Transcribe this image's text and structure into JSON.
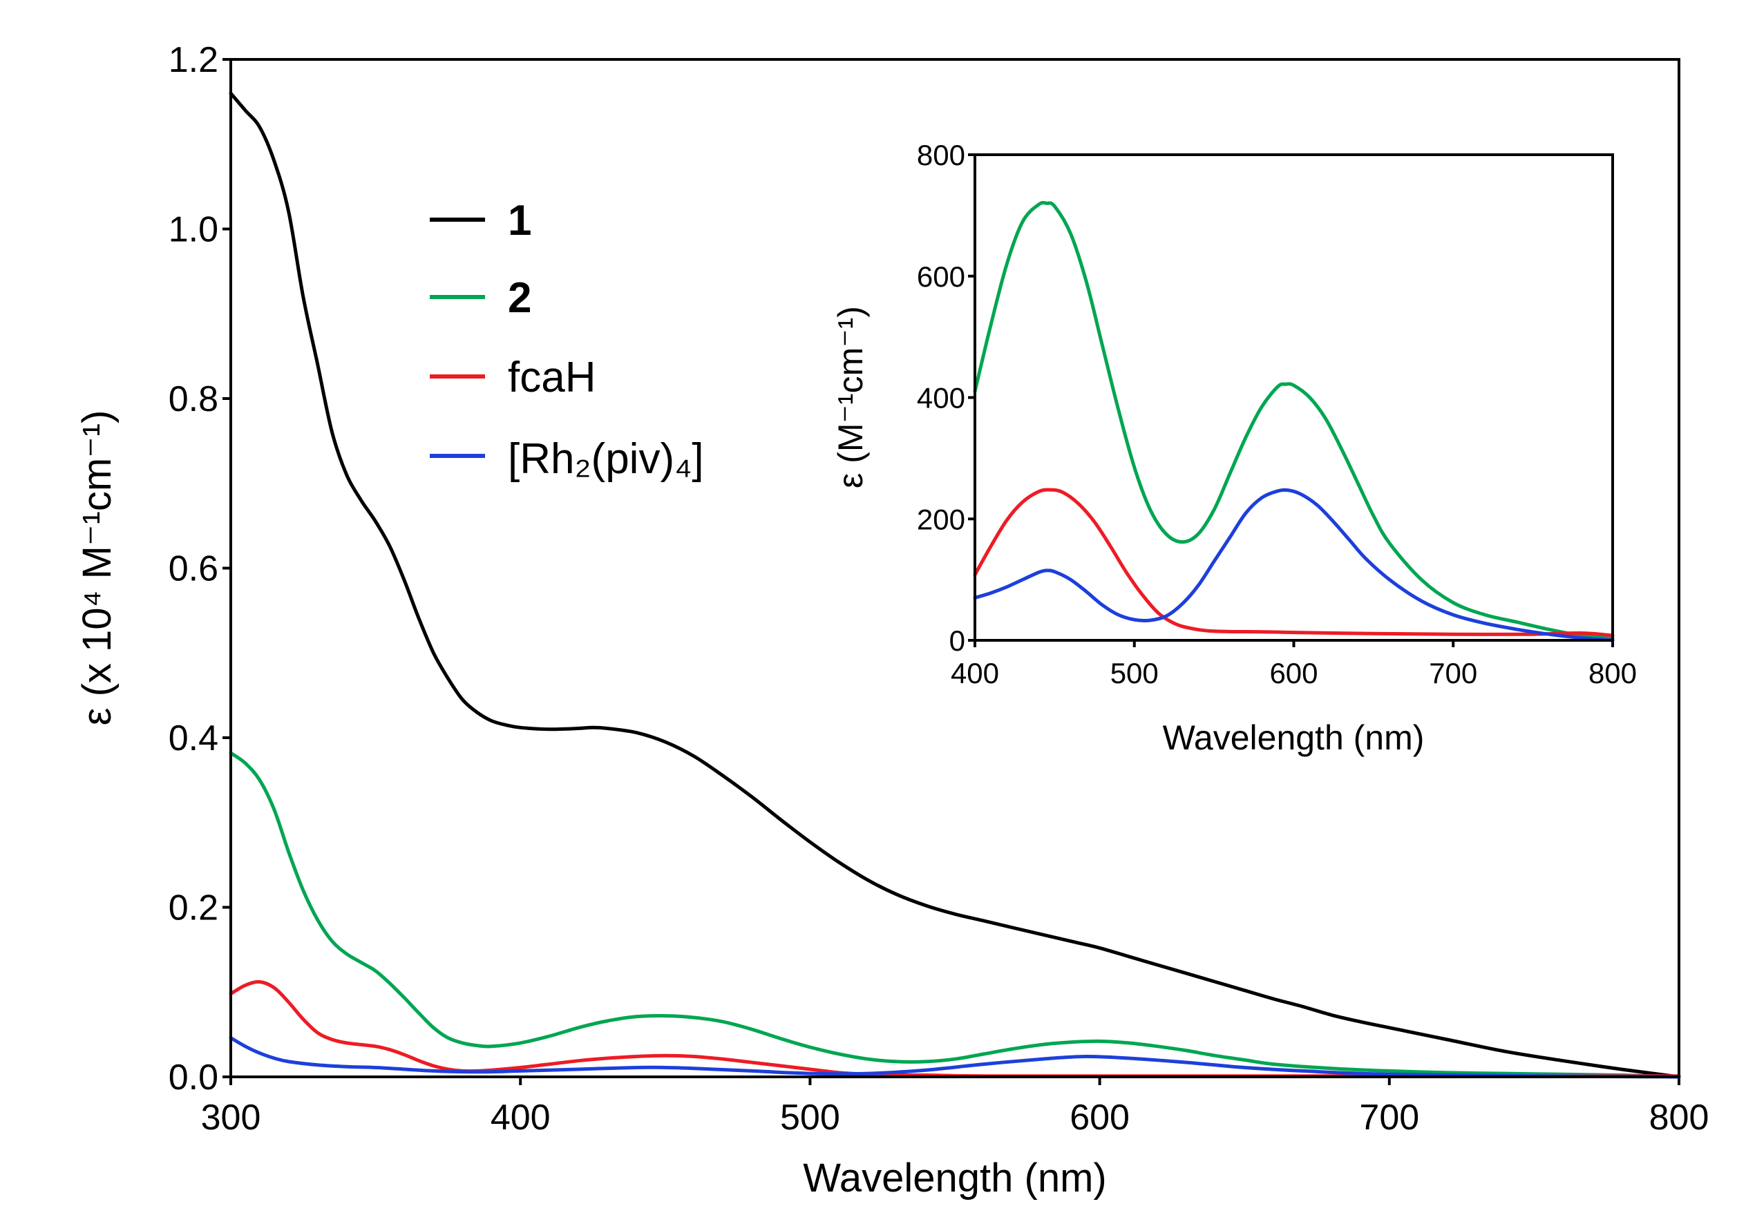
{
  "chart_data": [
    {
      "type": "line",
      "xlabel": "Wavelength (nm)",
      "ylabel": "ε (x 10⁴ M⁻¹cm⁻¹)",
      "xlim": [
        300,
        800
      ],
      "ylim": [
        0,
        1.2
      ],
      "xticks": [
        "300",
        "400",
        "500",
        "600",
        "700",
        "800"
      ],
      "yticks": [
        "0.0",
        "0.2",
        "0.4",
        "0.6",
        "0.8",
        "1.0",
        "1.2"
      ],
      "legend_position": "upper-left",
      "series": [
        {
          "name": "1",
          "color": "#000000",
          "x": [
            300,
            305,
            310,
            315,
            320,
            325,
            330,
            335,
            340,
            345,
            350,
            355,
            360,
            365,
            370,
            375,
            380,
            385,
            390,
            395,
            400,
            410,
            420,
            425,
            430,
            440,
            450,
            460,
            470,
            480,
            490,
            500,
            510,
            520,
            530,
            540,
            550,
            560,
            570,
            580,
            590,
            600,
            610,
            620,
            630,
            640,
            650,
            660,
            670,
            680,
            690,
            700,
            720,
            740,
            760,
            780,
            800
          ],
          "y": [
            1.16,
            1.14,
            1.12,
            1.08,
            1.02,
            0.92,
            0.84,
            0.76,
            0.71,
            0.68,
            0.655,
            0.625,
            0.585,
            0.54,
            0.5,
            0.47,
            0.445,
            0.43,
            0.42,
            0.415,
            0.412,
            0.41,
            0.411,
            0.412,
            0.411,
            0.406,
            0.395,
            0.378,
            0.355,
            0.33,
            0.303,
            0.277,
            0.253,
            0.232,
            0.215,
            0.202,
            0.192,
            0.184,
            0.176,
            0.168,
            0.16,
            0.152,
            0.142,
            0.132,
            0.122,
            0.112,
            0.102,
            0.092,
            0.083,
            0.073,
            0.065,
            0.058,
            0.044,
            0.03,
            0.019,
            0.009,
            0.0
          ]
        },
        {
          "name": "2",
          "color": "#00a651",
          "x": [
            300,
            305,
            310,
            315,
            320,
            325,
            330,
            335,
            340,
            345,
            350,
            355,
            360,
            365,
            370,
            375,
            380,
            385,
            390,
            400,
            410,
            420,
            430,
            440,
            450,
            460,
            470,
            480,
            490,
            500,
            510,
            520,
            530,
            540,
            550,
            560,
            570,
            580,
            590,
            600,
            610,
            620,
            630,
            640,
            650,
            660,
            680,
            700,
            720,
            740,
            760,
            780,
            800
          ],
          "y": [
            0.382,
            0.37,
            0.35,
            0.315,
            0.265,
            0.22,
            0.185,
            0.16,
            0.145,
            0.135,
            0.125,
            0.11,
            0.093,
            0.075,
            0.058,
            0.046,
            0.04,
            0.037,
            0.036,
            0.04,
            0.048,
            0.058,
            0.066,
            0.071,
            0.072,
            0.07,
            0.065,
            0.056,
            0.045,
            0.035,
            0.027,
            0.021,
            0.018,
            0.018,
            0.021,
            0.027,
            0.033,
            0.038,
            0.041,
            0.042,
            0.04,
            0.036,
            0.031,
            0.025,
            0.02,
            0.015,
            0.01,
            0.007,
            0.005,
            0.004,
            0.003,
            0.002,
            0.0
          ]
        },
        {
          "name": "fcaH",
          "color": "#ed1c24",
          "x": [
            300,
            305,
            310,
            315,
            320,
            325,
            330,
            335,
            340,
            345,
            350,
            355,
            360,
            365,
            370,
            375,
            380,
            385,
            390,
            400,
            410,
            420,
            430,
            440,
            450,
            460,
            470,
            480,
            490,
            500,
            510,
            520,
            530,
            540,
            560,
            600,
            650,
            700,
            750,
            800
          ],
          "y": [
            0.098,
            0.108,
            0.112,
            0.105,
            0.088,
            0.068,
            0.052,
            0.044,
            0.04,
            0.038,
            0.036,
            0.032,
            0.026,
            0.019,
            0.013,
            0.009,
            0.007,
            0.007,
            0.008,
            0.011,
            0.015,
            0.019,
            0.022,
            0.024,
            0.025,
            0.024,
            0.021,
            0.017,
            0.013,
            0.009,
            0.005,
            0.003,
            0.002,
            0.002,
            0.001,
            0.001,
            0.001,
            0.001,
            0.001,
            0.001
          ]
        },
        {
          "name": "[Rh₂(piv)₄]",
          "color": "#1d3fdb",
          "x": [
            300,
            305,
            310,
            315,
            320,
            330,
            340,
            350,
            360,
            370,
            380,
            390,
            400,
            420,
            440,
            450,
            460,
            480,
            500,
            520,
            540,
            560,
            580,
            595,
            610,
            630,
            650,
            670,
            700,
            750,
            800
          ],
          "y": [
            0.046,
            0.036,
            0.028,
            0.022,
            0.018,
            0.014,
            0.012,
            0.011,
            0.009,
            0.007,
            0.006,
            0.006,
            0.007,
            0.009,
            0.011,
            0.011,
            0.01,
            0.007,
            0.004,
            0.004,
            0.008,
            0.015,
            0.021,
            0.024,
            0.022,
            0.017,
            0.011,
            0.007,
            0.003,
            0.001,
            0.0
          ]
        }
      ]
    },
    {
      "type": "line",
      "inset": true,
      "xlabel": "Wavelength (nm)",
      "ylabel": "ε (M⁻¹cm⁻¹)",
      "xlim": [
        400,
        800
      ],
      "ylim": [
        0,
        800
      ],
      "xticks": [
        "400",
        "500",
        "600",
        "700",
        "800"
      ],
      "yticks": [
        "0",
        "200",
        "400",
        "600",
        "800"
      ],
      "series": [
        {
          "name": "2",
          "color": "#00a651",
          "x": [
            400,
            410,
            420,
            430,
            440,
            445,
            450,
            460,
            470,
            480,
            490,
            500,
            510,
            520,
            530,
            540,
            550,
            560,
            570,
            580,
            590,
            595,
            600,
            610,
            620,
            630,
            640,
            650,
            660,
            680,
            700,
            720,
            740,
            760,
            780,
            800
          ],
          "y": [
            410,
            520,
            620,
            690,
            718,
            720,
            715,
            670,
            590,
            485,
            380,
            285,
            215,
            175,
            162,
            175,
            215,
            275,
            335,
            385,
            418,
            422,
            420,
            400,
            365,
            315,
            260,
            205,
            160,
            100,
            62,
            42,
            30,
            18,
            8,
            3
          ]
        },
        {
          "name": "fcaH",
          "color": "#ed1c24",
          "x": [
            400,
            410,
            420,
            430,
            440,
            447,
            455,
            465,
            475,
            485,
            495,
            505,
            515,
            525,
            535,
            550,
            580,
            600,
            650,
            700,
            750,
            780,
            800
          ],
          "y": [
            108,
            155,
            198,
            228,
            245,
            248,
            244,
            225,
            195,
            155,
            112,
            75,
            45,
            28,
            20,
            15,
            14,
            13,
            11,
            10,
            10,
            12,
            8
          ]
        },
        {
          "name": "[Rh₂(piv)₄]",
          "color": "#1d3fdb",
          "x": [
            400,
            410,
            420,
            430,
            440,
            445,
            450,
            460,
            470,
            480,
            490,
            500,
            510,
            520,
            530,
            540,
            550,
            560,
            570,
            580,
            590,
            597,
            605,
            615,
            625,
            635,
            645,
            660,
            680,
            700,
            720,
            740,
            760,
            780,
            800
          ],
          "y": [
            70,
            78,
            88,
            100,
            112,
            115,
            113,
            100,
            80,
            58,
            42,
            34,
            33,
            40,
            60,
            90,
            130,
            170,
            210,
            235,
            246,
            247,
            240,
            222,
            195,
            165,
            135,
            100,
            65,
            42,
            28,
            18,
            10,
            4,
            0
          ]
        }
      ]
    }
  ]
}
